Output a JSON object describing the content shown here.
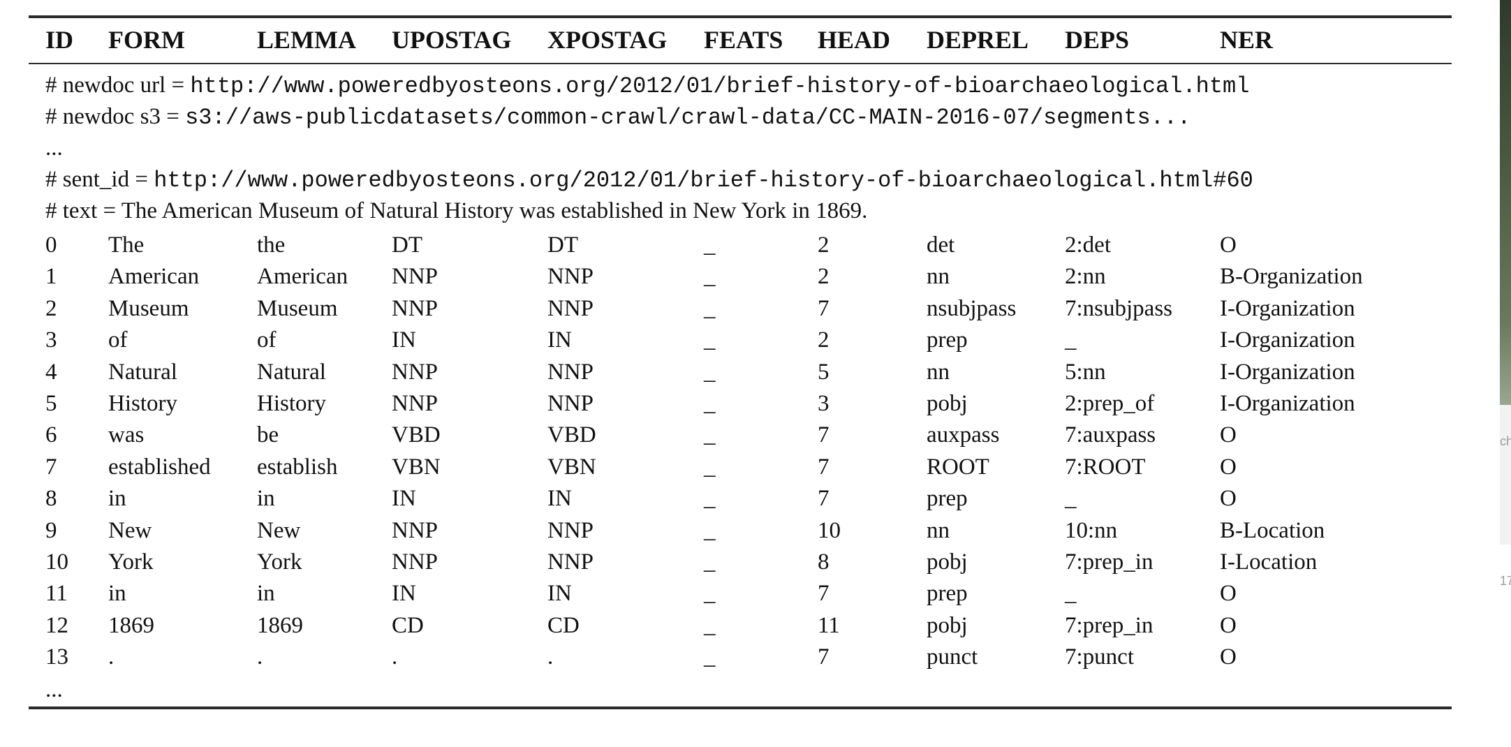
{
  "table": {
    "columns": [
      "ID",
      "FORM",
      "LEMMA",
      "UPOSTAG",
      "XPOSTAG",
      "FEATS",
      "HEAD",
      "DEPREL",
      "DEPS",
      "NER"
    ],
    "meta": [
      {
        "prefix": "# newdoc url = ",
        "value": "http://www.poweredbyosteons.org/2012/01/brief-history-of-bioarchaeological.html"
      },
      {
        "prefix": "# newdoc s3 = ",
        "value": "s3://aws-publicdatasets/common-crawl/crawl-data/CC-MAIN-2016-07/segments..."
      },
      {
        "prefix": "...",
        "value": ""
      },
      {
        "prefix": "# sent_id = ",
        "value": "http://www.poweredbyosteons.org/2012/01/brief-history-of-bioarchaeological.html#60"
      },
      {
        "prefix": "# text = The American Museum of Natural History was established in New York in 1869.",
        "value": ""
      }
    ],
    "rows": [
      [
        "0",
        "The",
        "the",
        "DT",
        "DT",
        "_",
        "2",
        "det",
        "2:det",
        "O"
      ],
      [
        "1",
        "American",
        "American",
        "NNP",
        "NNP",
        "_",
        "2",
        "nn",
        "2:nn",
        "B-Organization"
      ],
      [
        "2",
        "Museum",
        "Museum",
        "NNP",
        "NNP",
        "_",
        "7",
        "nsubjpass",
        "7:nsubjpass",
        "I-Organization"
      ],
      [
        "3",
        "of",
        "of",
        "IN",
        "IN",
        "_",
        "2",
        "prep",
        "_",
        "I-Organization"
      ],
      [
        "4",
        "Natural",
        "Natural",
        "NNP",
        "NNP",
        "_",
        "5",
        "nn",
        "5:nn",
        "I-Organization"
      ],
      [
        "5",
        "History",
        "History",
        "NNP",
        "NNP",
        "_",
        "3",
        "pobj",
        "2:prep_of",
        "I-Organization"
      ],
      [
        "6",
        "was",
        "be",
        "VBD",
        "VBD",
        "_",
        "7",
        "auxpass",
        "7:auxpass",
        "O"
      ],
      [
        "7",
        "established",
        "establish",
        "VBN",
        "VBN",
        "_",
        "7",
        "ROOT",
        "7:ROOT",
        "O"
      ],
      [
        "8",
        "in",
        "in",
        "IN",
        "IN",
        "_",
        "7",
        "prep",
        "_",
        "O"
      ],
      [
        "9",
        "New",
        "New",
        "NNP",
        "NNP",
        "_",
        "10",
        "nn",
        "10:nn",
        "B-Location"
      ],
      [
        "10",
        "York",
        "York",
        "NNP",
        "NNP",
        "_",
        "8",
        "pobj",
        "7:prep_in",
        "I-Location"
      ],
      [
        "11",
        "in",
        "in",
        "IN",
        "IN",
        "_",
        "7",
        "prep",
        "_",
        "O"
      ],
      [
        "12",
        "1869",
        "1869",
        "CD",
        "CD",
        "_",
        "11",
        "pobj",
        "7:prep_in",
        "O"
      ],
      [
        "13",
        ".",
        ".",
        ".",
        ".",
        "_",
        "7",
        "punct",
        "7:punct",
        "O"
      ]
    ],
    "trailer": "..."
  },
  "edge": {
    "snippet_1": "ch",
    "snippet_2": "17"
  }
}
